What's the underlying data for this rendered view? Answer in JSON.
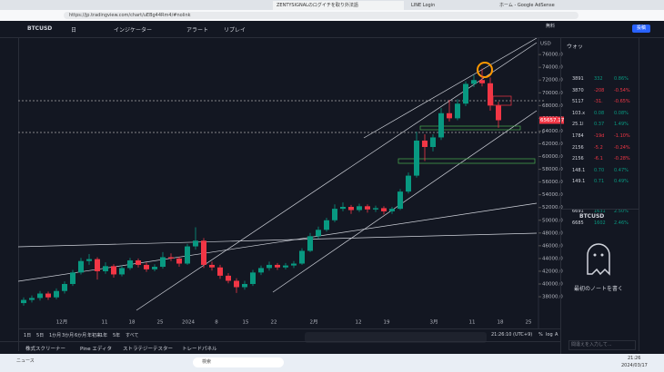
{
  "browser": {
    "tabs": [
      "ZENTYSIGNALのログイチを取り外法語",
      "LINE Login",
      "ホーム - Google AdSense"
    ],
    "url": "https://jp.tradingview.com/chart/uEBg44Rm4/#nolink"
  },
  "toolbar": {
    "symbol": "BTCUSD",
    "interval": "日",
    "indicators": "インジケーター",
    "alert": "アラート",
    "replay": "リプレイ",
    "free": "無料",
    "publish": "投稿"
  },
  "chart_data": {
    "type": "candlestick",
    "up_color": "#089981",
    "down_color": "#f23645",
    "currency": "USD",
    "price_label": "65657.17",
    "ylim": [
      35300,
      78300
    ],
    "yticks": [
      {
        "value": 76000,
        "label": "76000.0"
      },
      {
        "value": 74000,
        "label": "74000.0"
      },
      {
        "value": 72000,
        "label": "72000.0"
      },
      {
        "value": 70000,
        "label": "70000.0"
      },
      {
        "value": 68000,
        "label": "68000.0"
      },
      {
        "value": 66000,
        "label": "66000.0"
      },
      {
        "value": 64000,
        "label": "64000.0"
      },
      {
        "value": 62000,
        "label": "62000.0"
      },
      {
        "value": 60000,
        "label": "60000.0"
      },
      {
        "value": 58000,
        "label": "58000.0"
      },
      {
        "value": 56000,
        "label": "56000.0"
      },
      {
        "value": 54000,
        "label": "54000.0"
      },
      {
        "value": 52000,
        "label": "52000.0"
      },
      {
        "value": 50000,
        "label": "50000.0"
      },
      {
        "value": 48000,
        "label": "48000.0"
      },
      {
        "value": 46000,
        "label": "46000.0"
      },
      {
        "value": 44000,
        "label": "44000.0"
      },
      {
        "value": 42000,
        "label": "42000.0"
      },
      {
        "value": 40000,
        "label": "40000.0"
      },
      {
        "value": 38000,
        "label": "38000.0"
      }
    ],
    "x_labels": [
      "12月",
      "11",
      "18",
      "25",
      "2024",
      "8",
      "15",
      "22",
      "2月",
      "12",
      "19",
      "3月",
      "11",
      "18",
      "25"
    ],
    "candles": [
      [
        37000,
        37900,
        36600,
        37500
      ],
      [
        37500,
        38200,
        37100,
        37800
      ],
      [
        37800,
        38900,
        37400,
        38500
      ],
      [
        38500,
        38800,
        37500,
        37900
      ],
      [
        37900,
        39300,
        37600,
        38900
      ],
      [
        38900,
        40400,
        38500,
        40000
      ],
      [
        40000,
        42200,
        39700,
        41800
      ],
      [
        41800,
        44100,
        41500,
        43600
      ],
      [
        43600,
        44700,
        43000,
        43900
      ],
      [
        43900,
        44200,
        40700,
        42000
      ],
      [
        42000,
        43400,
        41600,
        42800
      ],
      [
        42800,
        43100,
        41000,
        41500
      ],
      [
        41500,
        42900,
        41200,
        42500
      ],
      [
        42500,
        44100,
        42200,
        43700
      ],
      [
        43700,
        44000,
        42600,
        43000
      ],
      [
        43000,
        43400,
        41900,
        42300
      ],
      [
        42300,
        43100,
        42000,
        42700
      ],
      [
        42700,
        45000,
        42400,
        44200
      ],
      [
        44200,
        44800,
        43600,
        44000
      ],
      [
        44000,
        44300,
        42700,
        43200
      ],
      [
        43200,
        46300,
        43000,
        45900
      ],
      [
        45900,
        48900,
        45400,
        46800
      ],
      [
        46800,
        47200,
        42500,
        43000
      ],
      [
        43000,
        43500,
        42100,
        42600
      ],
      [
        42600,
        43000,
        40800,
        41300
      ],
      [
        41300,
        41700,
        40100,
        40500
      ],
      [
        40500,
        40900,
        38600,
        39500
      ],
      [
        39500,
        40500,
        39100,
        40000
      ],
      [
        40000,
        42200,
        39700,
        41800
      ],
      [
        41800,
        42900,
        41400,
        42500
      ],
      [
        42500,
        43500,
        42100,
        43000
      ],
      [
        43000,
        43300,
        42200,
        42600
      ],
      [
        42600,
        43300,
        42300,
        42900
      ],
      [
        42900,
        43600,
        42500,
        43200
      ],
      [
        43200,
        45600,
        43000,
        45200
      ],
      [
        45200,
        48000,
        45000,
        47500
      ],
      [
        47500,
        49000,
        47100,
        48500
      ],
      [
        48500,
        50400,
        48200,
        50000
      ],
      [
        50000,
        52500,
        49700,
        51800
      ],
      [
        51800,
        52800,
        51400,
        52100
      ],
      [
        52100,
        52400,
        51000,
        51600
      ],
      [
        51600,
        52600,
        51300,
        52200
      ],
      [
        52200,
        52500,
        51200,
        51700
      ],
      [
        51700,
        52300,
        51300,
        51900
      ],
      [
        51900,
        52200,
        50900,
        51400
      ],
      [
        51400,
        52100,
        51000,
        51800
      ],
      [
        51800,
        54900,
        51600,
        54500
      ],
      [
        54500,
        57500,
        54200,
        57000
      ],
      [
        57000,
        63900,
        56700,
        62500
      ],
      [
        62500,
        63500,
        59300,
        61500
      ],
      [
        61500,
        63500,
        60800,
        63000
      ],
      [
        63000,
        67600,
        62600,
        66800
      ],
      [
        66800,
        68900,
        65500,
        66000
      ],
      [
        66000,
        69000,
        65700,
        68300
      ],
      [
        68300,
        71800,
        67900,
        71400
      ],
      [
        71400,
        72800,
        70900,
        72000
      ],
      [
        72000,
        73800,
        71000,
        71500
      ],
      [
        71500,
        72400,
        67200,
        68000
      ],
      [
        68000,
        68600,
        64500,
        65700
      ]
    ]
  },
  "watchlist": {
    "header": "ウォッ",
    "rows": [
      [
        "3891",
        "332",
        "0.86%"
      ],
      [
        "3870",
        "-208",
        "-0.54%"
      ],
      [
        "5117",
        "-31.",
        "-0.65%"
      ],
      [
        "103.x",
        "0.08",
        "0.08%"
      ],
      [
        "25.1l",
        "0.37",
        "1.49%"
      ],
      [
        "1784",
        "-19d",
        "-1.10%"
      ],
      [
        "2156",
        "-5.2",
        "-0.24%"
      ],
      [
        "2156",
        "-6.1",
        "-0.28%"
      ],
      [
        "148.1",
        "0.70",
        "0.47%"
      ],
      [
        "149.1",
        "0.71",
        "0.49%"
      ],
      [
        "6691",
        "1631",
        "2.50%"
      ],
      [
        "6685",
        "1602",
        "2.46%"
      ]
    ]
  },
  "notes": {
    "symbol": "BTCUSD",
    "empty": "最初のノートを書く",
    "input": "間違えを入力して..."
  },
  "bottom": {
    "ranges": [
      "1日",
      "5日",
      "1か月",
      "3か月",
      "6か月",
      "年初来",
      "1年",
      "5年",
      "すべて"
    ],
    "clock": "21:26:10 (UTC+9)",
    "percent": "%",
    "log": "log",
    "auto": "A",
    "tabs": [
      "株式スクリーナー",
      "Pine エディタ",
      "ストラテジーテスター",
      "トレードパネル"
    ]
  },
  "taskbar": {
    "news": "ニュース",
    "search": "検索",
    "time": "21:26",
    "date": "2024/03/17"
  }
}
